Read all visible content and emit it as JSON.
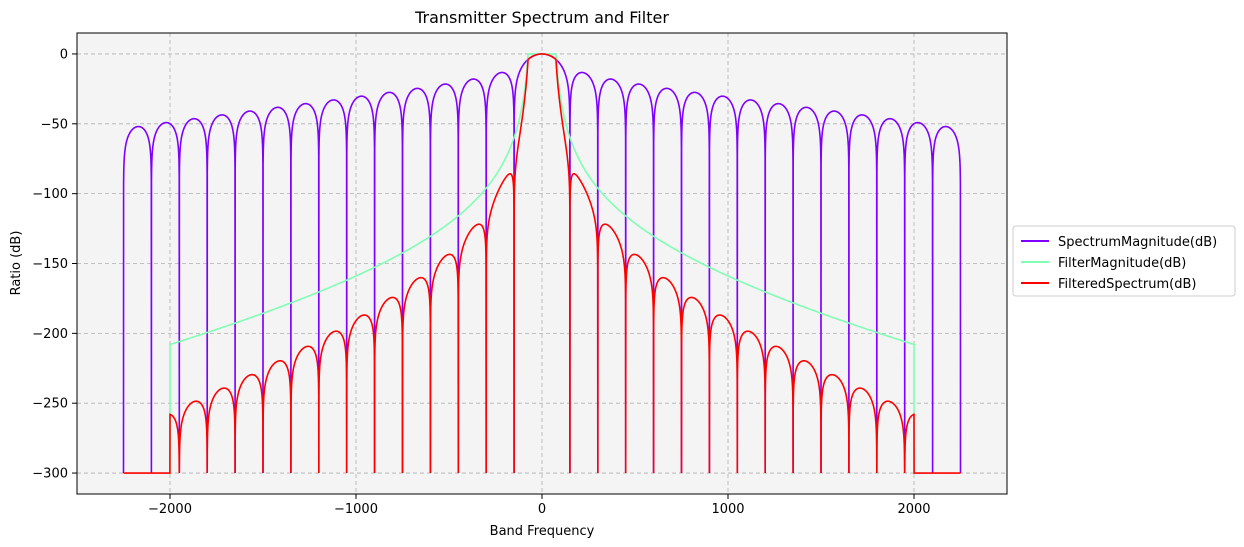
{
  "chart_data": {
    "type": "line",
    "title": "Transmitter Spectrum and Filter",
    "xlabel": "Band Frequency",
    "ylabel": "Ratio (dB)",
    "xlim": [
      -2500,
      2500
    ],
    "ylim": [
      -315,
      15
    ],
    "xticks": [
      -2000,
      -1000,
      0,
      1000,
      2000
    ],
    "yticks": [
      0,
      -50,
      -100,
      -150,
      -200,
      -250,
      -300
    ],
    "xtick_labels": [
      "−2000",
      "−1000",
      "0",
      "1000",
      "2000"
    ],
    "ytick_labels": [
      "0",
      "−50",
      "−100",
      "−150",
      "−200",
      "−250",
      "−300"
    ],
    "grid": true,
    "grid_style": "dashed",
    "legend_position": "outside-right",
    "background": "#f4f4f4",
    "series": [
      {
        "name": "SpectrumMagnitude(dB)",
        "color": "#7f00ff",
        "model": "sinc-lobes",
        "range": [
          -2250,
          2250
        ],
        "null_spacing": 150,
        "floor": -300,
        "main_lobe_half_width": 75,
        "sidelobe_peak_db": -13,
        "edge_peak_db": -33
      },
      {
        "name": "FilterMagnitude(dB)",
        "color": "#80ffb4",
        "model": "lowpass",
        "range": [
          -2000,
          2000
        ],
        "passband_edge": 75,
        "passband_db": 0,
        "edge_db": -208,
        "floor": -300
      },
      {
        "name": "FilteredSpectrum(dB)",
        "color": "#ff0000",
        "model": "sum",
        "components": [
          "SpectrumMagnitude(dB)",
          "FilterMagnitude(dB)"
        ],
        "range": [
          -2250,
          2250
        ],
        "floor": -300
      }
    ]
  }
}
